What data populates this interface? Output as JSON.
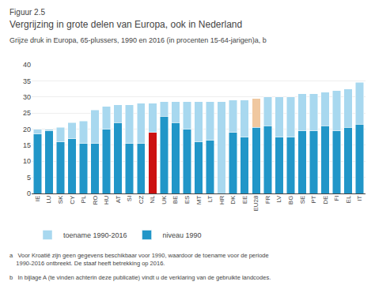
{
  "chart_data": {
    "type": "bar",
    "stacked": true,
    "title": "Vergrijzing in grote delen van Europa, ook in Nederland",
    "subtitle": "Grijze druk in Europa, 65-plussers, 1990 en 2016 (in procenten 15-64-jarigen)a, b",
    "annotations": [
      "Figuur 2.5",
      "a   Voor Kroatië zijn geen gegevens beschikbaar voor 1990, waardoor de toename voor de periode\n    1990-2016 ontbreekt. De staaf heeft betrekking op 2016.",
      "b   In bijlage A (te vinden achterin deze publicatie) vindt u de verklaring van de gebruikte landcodes."
    ],
    "categories": [
      "IE",
      "LU",
      "SK",
      "CY",
      "PL",
      "RO",
      "HU",
      "AT",
      "SI",
      "CZ",
      "NL",
      "UK",
      "BE",
      "ES",
      "MT",
      "LT",
      "HR",
      "DK",
      "EE",
      "EU28",
      "FR",
      "LV",
      "BG",
      "SE",
      "PT",
      "DE",
      "FI",
      "EL",
      "IT"
    ],
    "series": [
      {
        "name": "niveau 1990",
        "values": [
          18.5,
          19.5,
          16.0,
          17.0,
          15.5,
          15.5,
          20.0,
          22.0,
          15.5,
          15.5,
          19.0,
          24.0,
          22.0,
          20.0,
          16.0,
          16.5,
          28.5,
          19.0,
          17.5,
          20.5,
          21.0,
          17.5,
          17.5,
          19.5,
          19.5,
          21.0,
          19.5,
          20.5,
          21.5
        ],
        "colors": [
          "#2196c8",
          "#2196c8",
          "#2196c8",
          "#2196c8",
          "#2196c8",
          "#2196c8",
          "#2196c8",
          "#2196c8",
          "#2196c8",
          "#2196c8",
          "#cc1111",
          "#2196c8",
          "#2196c8",
          "#2196c8",
          "#2196c8",
          "#2196c8",
          "#a8d8ef",
          "#2196c8",
          "#2196c8",
          "#2196c8",
          "#2196c8",
          "#2196c8",
          "#2196c8",
          "#2196c8",
          "#2196c8",
          "#2196c8",
          "#2196c8",
          "#2196c8",
          "#2196c8"
        ]
      },
      {
        "name": "toename 1990-2016",
        "values": [
          1.5,
          0.5,
          4.5,
          5.0,
          7.0,
          10.5,
          7.0,
          5.5,
          12.0,
          12.5,
          9.0,
          4.5,
          6.5,
          8.5,
          12.5,
          12.0,
          0.0,
          10.0,
          11.5,
          9.0,
          9.0,
          12.5,
          12.5,
          11.5,
          11.5,
          10.5,
          12.5,
          12.0,
          13.0
        ],
        "colors": [
          "#a8d8ef",
          "#a8d8ef",
          "#a8d8ef",
          "#a8d8ef",
          "#a8d8ef",
          "#a8d8ef",
          "#a8d8ef",
          "#a8d8ef",
          "#a8d8ef",
          "#a8d8ef",
          "#a8d8ef",
          "#a8d8ef",
          "#a8d8ef",
          "#a8d8ef",
          "#a8d8ef",
          "#a8d8ef",
          "#a8d8ef",
          "#a8d8ef",
          "#a8d8ef",
          "#f0c8a0",
          "#a8d8ef",
          "#a8d8ef",
          "#a8d8ef",
          "#a8d8ef",
          "#a8d8ef",
          "#a8d8ef",
          "#a8d8ef",
          "#a8d8ef",
          "#a8d8ef"
        ]
      }
    ],
    "ylim": [
      0,
      40
    ],
    "yticks": [
      0,
      5,
      10,
      15,
      20,
      25,
      30,
      35,
      40
    ],
    "grid": true
  }
}
